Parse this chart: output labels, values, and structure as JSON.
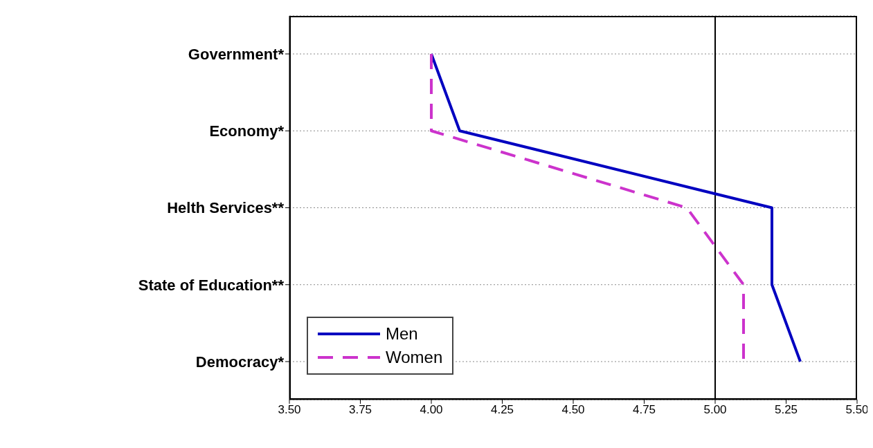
{
  "chart_data": {
    "type": "line",
    "categories": [
      "Government*",
      "Economy*",
      "Helth Services**",
      "State of Education**",
      "Democracy*"
    ],
    "series": [
      {
        "name": "Men",
        "color": "#0000c0",
        "line_style": "solid",
        "values": [
          4.0,
          4.1,
          5.2,
          5.2,
          5.3
        ]
      },
      {
        "name": "Women",
        "color": "#cc33cc",
        "line_style": "dashed",
        "values": [
          4.0,
          4.0,
          4.9,
          5.1,
          5.1
        ]
      }
    ],
    "xlim": [
      3.5,
      5.5
    ],
    "xticks": [
      {
        "value": 3.5,
        "label": "3.50"
      },
      {
        "value": 3.75,
        "label": "3.75"
      },
      {
        "value": 4.0,
        "label": "4.00"
      },
      {
        "value": 4.25,
        "label": "4.25"
      },
      {
        "value": 4.5,
        "label": "4.50"
      },
      {
        "value": 4.75,
        "label": "4.75"
      },
      {
        "value": 5.0,
        "label": "5.00"
      },
      {
        "value": 5.25,
        "label": "5.25"
      },
      {
        "value": 5.5,
        "label": "5.50"
      }
    ],
    "ref_lines": [
      {
        "axis": "x",
        "value": 5.0,
        "color": "#000000"
      }
    ],
    "orientation": "horizontal",
    "grid": "y",
    "legend": "bottom left",
    "marker": "none"
  }
}
